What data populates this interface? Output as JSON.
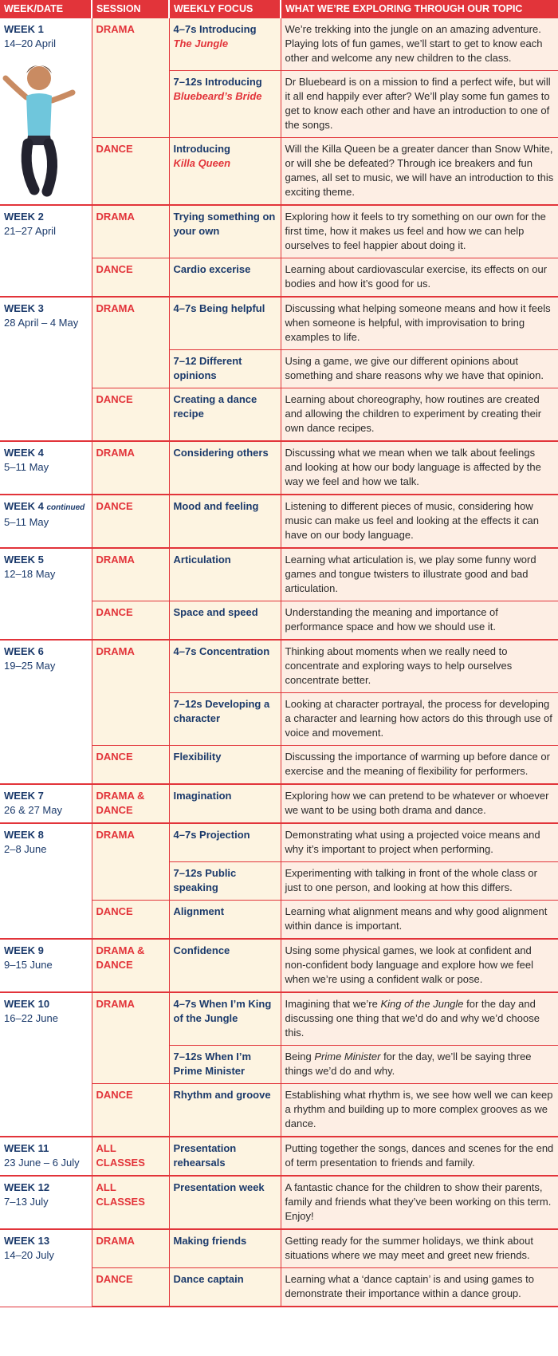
{
  "table": {
    "headers": [
      "WEEK/DATE",
      "SESSION",
      "WEEKLY FOCUS",
      "WHAT WE’RE EXPLORING THROUGH OUR TOPIC"
    ],
    "weeks": [
      {
        "week": "WEEK 1",
        "dates": "14–20 April",
        "sessions": [
          {
            "session": "DRAMA",
            "rows": [
              {
                "focus": "4–7s Introducing",
                "title": "The Jungle",
                "description": "We’re trekking into the jungle on an amazing adventure. Playing lots of fun games, we’ll start to get to know each other and welcome any new children to the class."
              },
              {
                "focus": "7–12s Introducing",
                "title": "Bluebeard’s Bride",
                "description": "Dr Bluebeard is on a mission to find a perfect wife, but will it all end happily ever after? We’ll play some fun games to get to know each other and have an introduction to one of the songs."
              }
            ]
          },
          {
            "session": "DANCE",
            "rows": [
              {
                "focus": "Introducing",
                "title": "Killa Queen",
                "description": "Will the Killa Queen be a greater dancer than Snow White, or will she be defeated? Through ice breakers and fun games, all set to music, we will have an introduction to this exciting theme."
              }
            ]
          }
        ]
      },
      {
        "week": "WEEK 2",
        "dates": "21–27 April",
        "sessions": [
          {
            "session": "DRAMA",
            "rows": [
              {
                "focus": "Trying something on your own",
                "description": "Exploring how it feels to try something on our own for the first time, how it makes us feel and how we can help ourselves to feel happier about doing it."
              }
            ]
          },
          {
            "session": "DANCE",
            "rows": [
              {
                "focus": "Cardio excerise",
                "description": "Learning about cardiovascular exercise, its effects on our bodies and how it’s good for us."
              }
            ]
          }
        ]
      },
      {
        "week": "WEEK 3",
        "dates": "28 April – 4 May",
        "sessions": [
          {
            "session": "DRAMA",
            "rows": [
              {
                "focus": "4–7s Being helpful",
                "description": "Discussing what helping someone means and how it feels when someone is helpful, with improvisation to bring examples to life."
              },
              {
                "focus": "7–12 Different opinions",
                "description": "Using a game, we give our different opinions about something and share reasons why we have that opinion."
              }
            ]
          },
          {
            "session": "DANCE",
            "rows": [
              {
                "focus": "Creating a dance recipe",
                "description": "Learning about choreography, how routines are created and allowing the children to experiment by creating their own dance recipes."
              }
            ]
          }
        ]
      },
      {
        "week": "WEEK 4",
        "dates": "5–11 May",
        "sessions": [
          {
            "session": "DRAMA",
            "rows": [
              {
                "focus": "Considering others",
                "description": "Discussing what we mean when we talk about feelings and looking at how our body language is affected by the way we feel and how we talk."
              }
            ]
          }
        ]
      },
      {
        "week": "WEEK 4",
        "note": "continued",
        "dates": "5–11 May",
        "sessions": [
          {
            "session": "DANCE",
            "rows": [
              {
                "focus": "Mood and feeling",
                "description": "Listening to different pieces of music, considering how music can make us feel and looking at the effects it can have on our body language."
              }
            ]
          }
        ]
      },
      {
        "week": "WEEK 5",
        "dates": "12–18 May",
        "sessions": [
          {
            "session": "DRAMA",
            "rows": [
              {
                "focus": "Articulation",
                "description": "Learning what articulation is, we play some funny word games and tongue twisters to illustrate good and bad articulation."
              }
            ]
          },
          {
            "session": "DANCE",
            "rows": [
              {
                "focus": "Space and speed",
                "description": "Understanding the meaning and importance of performance space and how we should use it."
              }
            ]
          }
        ]
      },
      {
        "week": "WEEK 6",
        "dates": "19–25 May",
        "sessions": [
          {
            "session": "DRAMA",
            "rows": [
              {
                "focus": "4–7s Concentration",
                "description": "Thinking about moments when we really need to concentrate and exploring ways to help ourselves concentrate better."
              },
              {
                "focus": "7–12s Developing a character",
                "description": "Looking at character portrayal, the process for developing a character and learning how actors do this through use of voice and movement."
              }
            ]
          },
          {
            "session": "DANCE",
            "rows": [
              {
                "focus": "Flexibility",
                "description": "Discussing the importance of warming up before dance or exercise and the meaning of flexibility for performers."
              }
            ]
          }
        ]
      },
      {
        "week": "WEEK 7",
        "dates": "26 & 27 May",
        "sessions": [
          {
            "session": "DRAMA & DANCE",
            "rows": [
              {
                "focus": "Imagination",
                "description": "Exploring how we can pretend to be whatever or whoever we want to be using both drama and dance."
              }
            ]
          }
        ]
      },
      {
        "week": "WEEK 8",
        "dates": "2–8 June",
        "sessions": [
          {
            "session": "DRAMA",
            "rows": [
              {
                "focus": "4–7s Projection",
                "description": "Demonstrating what using a projected voice means and why it’s important to project when performing."
              },
              {
                "focus": "7–12s Public speaking",
                "description": "Experimenting with talking in front of the whole class or just to one person, and looking at how this differs."
              }
            ]
          },
          {
            "session": "DANCE",
            "rows": [
              {
                "focus": "Alignment",
                "description": "Learning what alignment means and why good alignment within dance is important."
              }
            ]
          }
        ]
      },
      {
        "week": "WEEK 9",
        "dates": "9–15 June",
        "sessions": [
          {
            "session": "DRAMA & DANCE",
            "rows": [
              {
                "focus": "Confidence",
                "description": "Using some physical games, we look at confident and non-confident body language and explore how we feel when we’re using a confident walk or pose."
              }
            ]
          }
        ]
      },
      {
        "week": "WEEK 10",
        "dates": "16–22 June",
        "sessions": [
          {
            "session": "DRAMA",
            "rows": [
              {
                "focus": "4–7s When I’m King of the Jungle",
                "description": "Imagining that we’re King of the Jungle for the day and discussing one thing that we’d do and why we’d choose this.",
                "italic": "King of the Jungle"
              },
              {
                "focus": "7–12s When I’m Prime Minister",
                "description": "Being Prime Minister for the day, we’ll be saying three things we’d do and why.",
                "italic": "Prime Minister"
              }
            ]
          },
          {
            "session": "DANCE",
            "rows": [
              {
                "focus": "Rhythm and groove",
                "description": "Establishing what rhythm is, we see how well we can keep a rhythm and building up to more complex grooves as we dance."
              }
            ]
          }
        ]
      },
      {
        "week": "WEEK 11",
        "dates": "23 June – 6 July",
        "sessions": [
          {
            "session": "ALL CLASSES",
            "rows": [
              {
                "focus": "Presentation rehearsals",
                "description": "Putting together the songs, dances and scenes for the end of term presentation to friends and family."
              }
            ]
          }
        ]
      },
      {
        "week": "WEEK 12",
        "dates": "7–13 July",
        "sessions": [
          {
            "session": "ALL CLASSES",
            "rows": [
              {
                "focus": "Presentation week",
                "description": "A fantastic chance for the children to show their parents, family and friends what they’ve been working on this term. Enjoy!"
              }
            ]
          }
        ]
      },
      {
        "week": "WEEK 13",
        "dates": "14–20 July",
        "sessions": [
          {
            "session": "DRAMA",
            "rows": [
              {
                "focus": "Making friends",
                "description": "Getting ready for the summer holidays, we think about situations where we may meet and greet new friends."
              }
            ]
          },
          {
            "session": "DANCE",
            "rows": [
              {
                "focus": "Dance captain",
                "description": "Learning what a ‘dance captain’ is and using games to demonstrate their importance within a dance group."
              }
            ]
          }
        ]
      }
    ]
  }
}
